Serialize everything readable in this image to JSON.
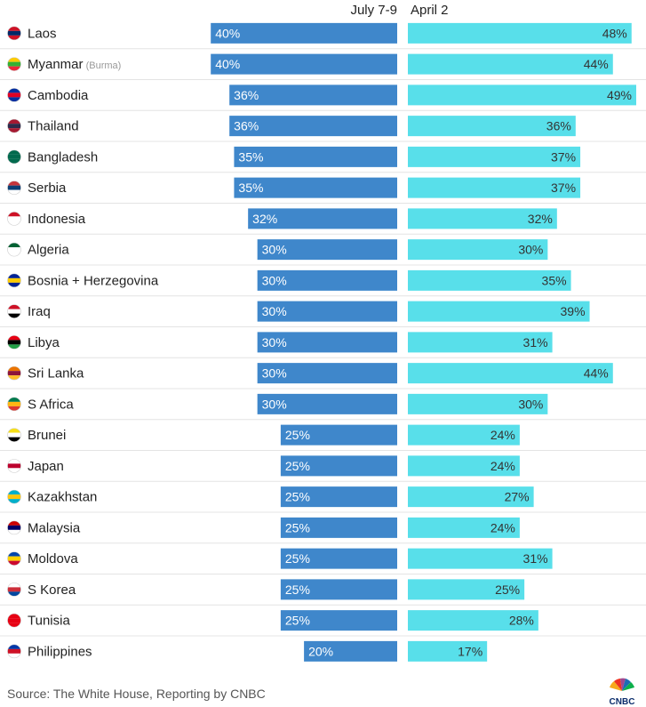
{
  "chart_data": {
    "type": "bar",
    "series": [
      {
        "name": "July 7-9",
        "color": "#3f87cb"
      },
      {
        "name": "April 2",
        "color": "#58dfea"
      }
    ],
    "rows": [
      {
        "country": "Laos",
        "note": "",
        "flag": "laos-flag-icon",
        "july": 40,
        "april": 48
      },
      {
        "country": "Myanmar",
        "note": "(Burma)",
        "flag": "myanmar-flag-icon",
        "july": 40,
        "april": 44
      },
      {
        "country": "Cambodia",
        "note": "",
        "flag": "cambodia-flag-icon",
        "july": 36,
        "april": 49
      },
      {
        "country": "Thailand",
        "note": "",
        "flag": "thailand-flag-icon",
        "july": 36,
        "april": 36
      },
      {
        "country": "Bangladesh",
        "note": "",
        "flag": "bangladesh-flag-icon",
        "july": 35,
        "april": 37
      },
      {
        "country": "Serbia",
        "note": "",
        "flag": "serbia-flag-icon",
        "july": 35,
        "april": 37
      },
      {
        "country": "Indonesia",
        "note": "",
        "flag": "indonesia-flag-icon",
        "july": 32,
        "april": 32
      },
      {
        "country": "Algeria",
        "note": "",
        "flag": "algeria-flag-icon",
        "july": 30,
        "april": 30
      },
      {
        "country": "Bosnia + Herzegovina",
        "note": "",
        "flag": "bosnia-flag-icon",
        "july": 30,
        "april": 35
      },
      {
        "country": "Iraq",
        "note": "",
        "flag": "iraq-flag-icon",
        "july": 30,
        "april": 39
      },
      {
        "country": "Libya",
        "note": "",
        "flag": "libya-flag-icon",
        "july": 30,
        "april": 31
      },
      {
        "country": "Sri Lanka",
        "note": "",
        "flag": "sri-lanka-flag-icon",
        "july": 30,
        "april": 44
      },
      {
        "country": "S Africa",
        "note": "",
        "flag": "south-africa-flag-icon",
        "july": 30,
        "april": 30
      },
      {
        "country": "Brunei",
        "note": "",
        "flag": "brunei-flag-icon",
        "july": 25,
        "april": 24
      },
      {
        "country": "Japan",
        "note": "",
        "flag": "japan-flag-icon",
        "july": 25,
        "april": 24
      },
      {
        "country": "Kazakhstan",
        "note": "",
        "flag": "kazakhstan-flag-icon",
        "july": 25,
        "april": 27
      },
      {
        "country": "Malaysia",
        "note": "",
        "flag": "malaysia-flag-icon",
        "july": 25,
        "april": 24
      },
      {
        "country": "Moldova",
        "note": "",
        "flag": "moldova-flag-icon",
        "july": 25,
        "april": 31
      },
      {
        "country": "S Korea",
        "note": "",
        "flag": "south-korea-flag-icon",
        "july": 25,
        "april": 25
      },
      {
        "country": "Tunisia",
        "note": "",
        "flag": "tunisia-flag-icon",
        "july": 25,
        "april": 28
      },
      {
        "country": "Philippines",
        "note": "",
        "flag": "philippines-flag-icon",
        "july": 20,
        "april": 17
      }
    ],
    "value_suffix": "%",
    "xlim": [
      0,
      49
    ]
  },
  "footer": {
    "source": "Source: The White House, Reporting by CNBC"
  },
  "logo": {
    "text": "CNBC"
  }
}
